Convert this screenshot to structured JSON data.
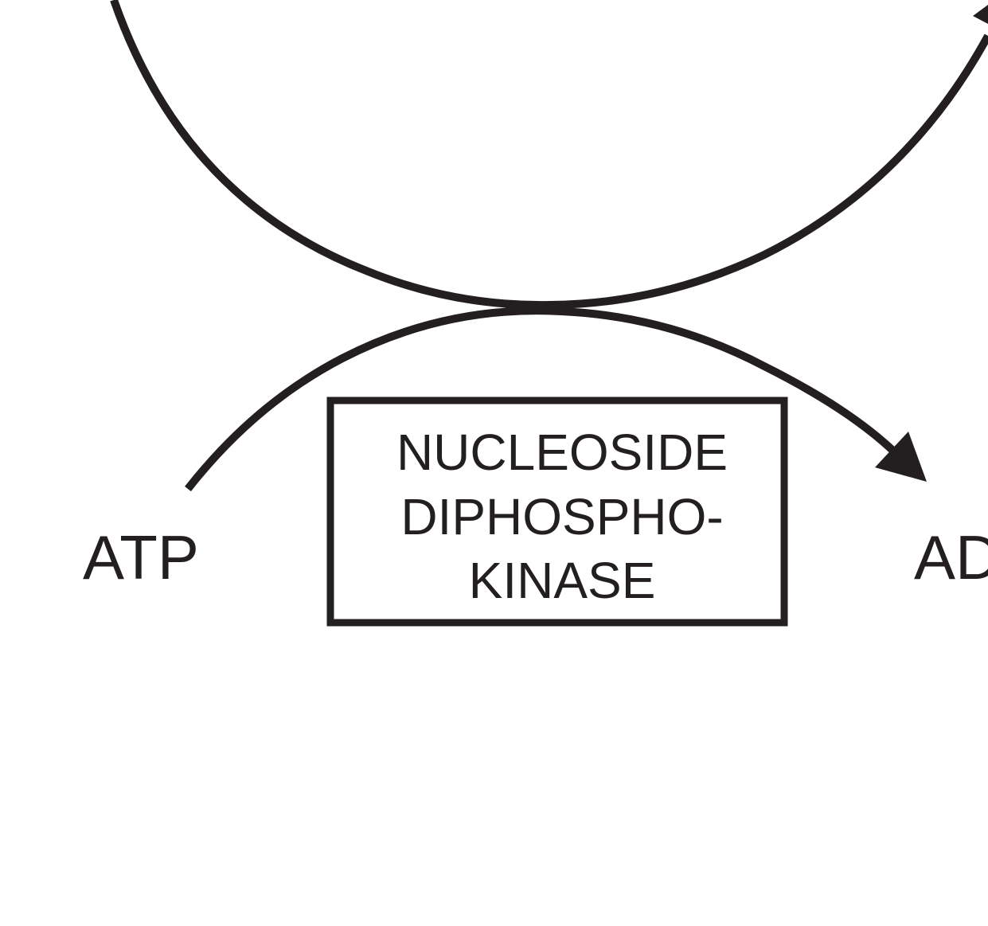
{
  "diagram": {
    "enzyme_box": {
      "lines": [
        "NUCLEOSIDE",
        "DIPHOSPHO-",
        "KINASE"
      ]
    },
    "left_label": "ATP",
    "right_label": "AD",
    "colors": {
      "stroke": "#231f20",
      "background": "#ffffff"
    }
  }
}
